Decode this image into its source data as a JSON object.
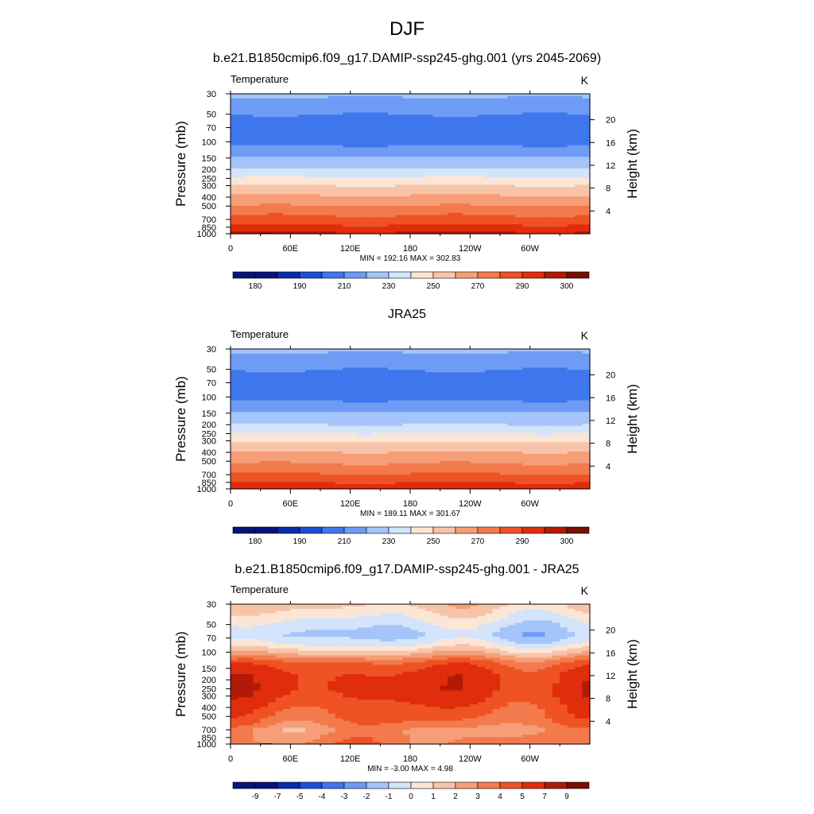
{
  "figure_title": "DJF",
  "chart_data": [
    {
      "type": "heatmap",
      "title": "b.e21.B1850cmip6.f09_g17.DAMIP-ssp245-ghg.001 (yrs 2045-2069)",
      "variable": "Temperature",
      "units": "K",
      "xlabel": "",
      "ylabel": "Pressure (mb)",
      "ylabel_right": "Height (km)",
      "x_ticks": [
        "0",
        "60E",
        "120E",
        "180",
        "120W",
        "60W"
      ],
      "x_tick_values": [
        0,
        60,
        120,
        180,
        240,
        300
      ],
      "xlim": [
        0,
        360
      ],
      "pressure_ticks": [
        30,
        50,
        70,
        100,
        150,
        200,
        250,
        300,
        400,
        500,
        700,
        850,
        1000
      ],
      "height_ticks": [
        4,
        8,
        12,
        16,
        20
      ],
      "stats": "MIN = 192.16  MAX = 302.83",
      "colorbar_labels": [
        "180",
        "190",
        "210",
        "230",
        "250",
        "270",
        "290",
        "300"
      ],
      "profile": [
        {
          "p": 30,
          "v": 212
        },
        {
          "p": 40,
          "v": 206
        },
        {
          "p": 50,
          "v": 200
        },
        {
          "p": 70,
          "v": 197
        },
        {
          "p": 100,
          "v": 197
        },
        {
          "p": 130,
          "v": 205
        },
        {
          "p": 150,
          "v": 211
        },
        {
          "p": 200,
          "v": 221
        },
        {
          "p": 250,
          "v": 232
        },
        {
          "p": 300,
          "v": 240
        },
        {
          "p": 400,
          "v": 252
        },
        {
          "p": 500,
          "v": 261
        },
        {
          "p": 600,
          "v": 268
        },
        {
          "p": 700,
          "v": 274
        },
        {
          "p": 850,
          "v": 283
        },
        {
          "p": 950,
          "v": 289
        },
        {
          "p": 1000,
          "v": 293
        }
      ],
      "terrain": true
    },
    {
      "type": "heatmap",
      "title": "JRA25",
      "variable": "Temperature",
      "units": "K",
      "xlabel": "",
      "ylabel": "Pressure (mb)",
      "ylabel_right": "Height (km)",
      "x_ticks": [
        "0",
        "60E",
        "120E",
        "180",
        "120W",
        "60W"
      ],
      "x_tick_values": [
        0,
        60,
        120,
        180,
        240,
        300
      ],
      "xlim": [
        0,
        360
      ],
      "pressure_ticks": [
        30,
        50,
        70,
        100,
        150,
        200,
        250,
        300,
        400,
        500,
        700,
        850,
        1000
      ],
      "height_ticks": [
        4,
        8,
        12,
        16,
        20
      ],
      "stats": "MIN = 189.11  MAX = 301.67",
      "colorbar_labels": [
        "180",
        "190",
        "210",
        "230",
        "250",
        "270",
        "290",
        "300"
      ],
      "profile": [
        {
          "p": 30,
          "v": 212
        },
        {
          "p": 40,
          "v": 206
        },
        {
          "p": 50,
          "v": 200
        },
        {
          "p": 70,
          "v": 198
        },
        {
          "p": 100,
          "v": 197
        },
        {
          "p": 130,
          "v": 205
        },
        {
          "p": 150,
          "v": 211
        },
        {
          "p": 200,
          "v": 220
        },
        {
          "p": 250,
          "v": 230
        },
        {
          "p": 300,
          "v": 238
        },
        {
          "p": 400,
          "v": 250
        },
        {
          "p": 500,
          "v": 258
        },
        {
          "p": 600,
          "v": 265
        },
        {
          "p": 700,
          "v": 271
        },
        {
          "p": 850,
          "v": 280
        },
        {
          "p": 950,
          "v": 286
        },
        {
          "p": 1000,
          "v": 291
        }
      ],
      "terrain": false
    },
    {
      "type": "heatmap",
      "title": "b.e21.B1850cmip6.f09_g17.DAMIP-ssp245-ghg.001 - JRA25",
      "variable": "Temperature",
      "units": "K",
      "xlabel": "",
      "ylabel": "Pressure (mb)",
      "ylabel_right": "Height (km)",
      "x_ticks": [
        "0",
        "60E",
        "120E",
        "180",
        "120W",
        "60W"
      ],
      "x_tick_values": [
        0,
        60,
        120,
        180,
        240,
        300
      ],
      "xlim": [
        0,
        360
      ],
      "pressure_ticks": [
        30,
        50,
        70,
        100,
        150,
        200,
        250,
        300,
        400,
        500,
        700,
        850,
        1000
      ],
      "height_ticks": [
        4,
        8,
        12,
        16,
        20
      ],
      "stats": "MIN =  -3.00  MAX =   4.98",
      "colorbar_labels": [
        "-9",
        "-7",
        "-5",
        "-4",
        "-3",
        "-2",
        "-1",
        "0",
        "1",
        "2",
        "3",
        "4",
        "5",
        "7",
        "9"
      ],
      "profile": [
        {
          "p": 30,
          "v": 0.4
        },
        {
          "p": 40,
          "v": -0.6
        },
        {
          "p": 50,
          "v": -1.5
        },
        {
          "p": 65,
          "v": -2.2
        },
        {
          "p": 80,
          "v": -1.2
        },
        {
          "p": 100,
          "v": 0.6
        },
        {
          "p": 130,
          "v": 3.2
        },
        {
          "p": 170,
          "v": 4.2
        },
        {
          "p": 250,
          "v": 4.4
        },
        {
          "p": 300,
          "v": 4.2
        },
        {
          "p": 400,
          "v": 3.6
        },
        {
          "p": 500,
          "v": 3.2
        },
        {
          "p": 600,
          "v": 2.6
        },
        {
          "p": 700,
          "v": 1.8
        },
        {
          "p": 850,
          "v": 2.2
        },
        {
          "p": 1000,
          "v": 2.5
        }
      ],
      "terrain": true
    }
  ],
  "colors": {
    "abs_levels": [
      "#08137a",
      "#0b2ba8",
      "#1b4fd6",
      "#3f76ee",
      "#6e9cf5",
      "#a5c4f9",
      "#d3e4fb",
      "#fbe6d6",
      "#f8c4a9",
      "#f59e78",
      "#f37a4d",
      "#ef5223",
      "#e02d0c",
      "#b01a06",
      "#780f02"
    ],
    "diff_levels": [
      "#08137a",
      "#0b2ba8",
      "#1b4fd6",
      "#3f76ee",
      "#6e9cf5",
      "#a5c4f9",
      "#d3e4fb",
      "#fbe6d6",
      "#f8c4a9",
      "#f59e78",
      "#f37a4d",
      "#ef5223",
      "#e02d0c",
      "#b01a06",
      "#780f02"
    ],
    "terrain": "#000000"
  }
}
